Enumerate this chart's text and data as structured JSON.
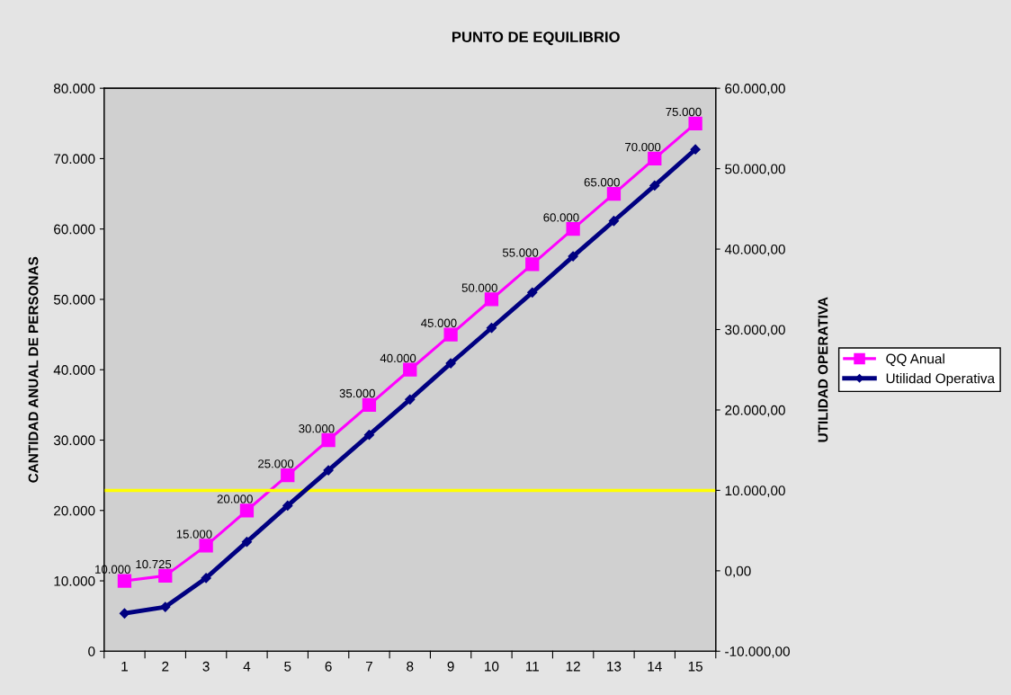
{
  "chart_data": {
    "type": "line",
    "title": "PUNTO DE EQUILIBRIO",
    "categories": [
      "1",
      "2",
      "3",
      "4",
      "5",
      "6",
      "7",
      "8",
      "9",
      "10",
      "11",
      "12",
      "13",
      "14",
      "15"
    ],
    "ylabel": "CANTIDAD ANUAL DE PERSONAS",
    "y2label": "UTILIDAD OPERATIVA",
    "ylim": [
      0,
      80000
    ],
    "yticks": [
      {
        "value": 0,
        "label": "0"
      },
      {
        "value": 10000,
        "label": "10.000"
      },
      {
        "value": 20000,
        "label": "20.000"
      },
      {
        "value": 30000,
        "label": "30.000"
      },
      {
        "value": 40000,
        "label": "40.000"
      },
      {
        "value": 50000,
        "label": "50.000"
      },
      {
        "value": 60000,
        "label": "60.000"
      },
      {
        "value": 70000,
        "label": "70.000"
      },
      {
        "value": 80000,
        "label": "80.000"
      }
    ],
    "y2lim": [
      -10000,
      60000
    ],
    "y2ticks": [
      {
        "value": -10000,
        "label": "-10.000,00"
      },
      {
        "value": 0,
        "label": "0,00"
      },
      {
        "value": 10000,
        "label": "10.000,00"
      },
      {
        "value": 20000,
        "label": "20.000,00"
      },
      {
        "value": 30000,
        "label": "30.000,00"
      },
      {
        "value": 40000,
        "label": "40.000,00"
      },
      {
        "value": 50000,
        "label": "50.000,00"
      },
      {
        "value": 60000,
        "label": "60.000,00"
      }
    ],
    "series": [
      {
        "name": "QQ Anual",
        "color": "#ff00ff",
        "marker": "square",
        "values": [
          10000,
          10725,
          15000,
          20000,
          25000,
          30000,
          35000,
          40000,
          45000,
          50000,
          55000,
          60000,
          65000,
          70000,
          75000
        ],
        "value_labels": [
          "10.000",
          "10.725",
          "15.000",
          "20.000",
          "25.000",
          "30.000",
          "35.000",
          "40.000",
          "45.000",
          "50.000",
          "55.000",
          "60.000",
          "65.000",
          "70.000",
          "75.000"
        ]
      },
      {
        "name": "Utilidad Operativa",
        "color": "#000080",
        "marker": "diamond",
        "axis": "y2",
        "values": [
          -5300,
          -4500,
          -900,
          3600,
          8100,
          12500,
          16900,
          21300,
          25800,
          30200,
          34600,
          39100,
          43500,
          47900,
          52400
        ]
      }
    ],
    "ref_lines": [
      {
        "axis": "y2",
        "value": 10000,
        "color": "#ffff00"
      }
    ],
    "grid": false,
    "legend": "right"
  }
}
